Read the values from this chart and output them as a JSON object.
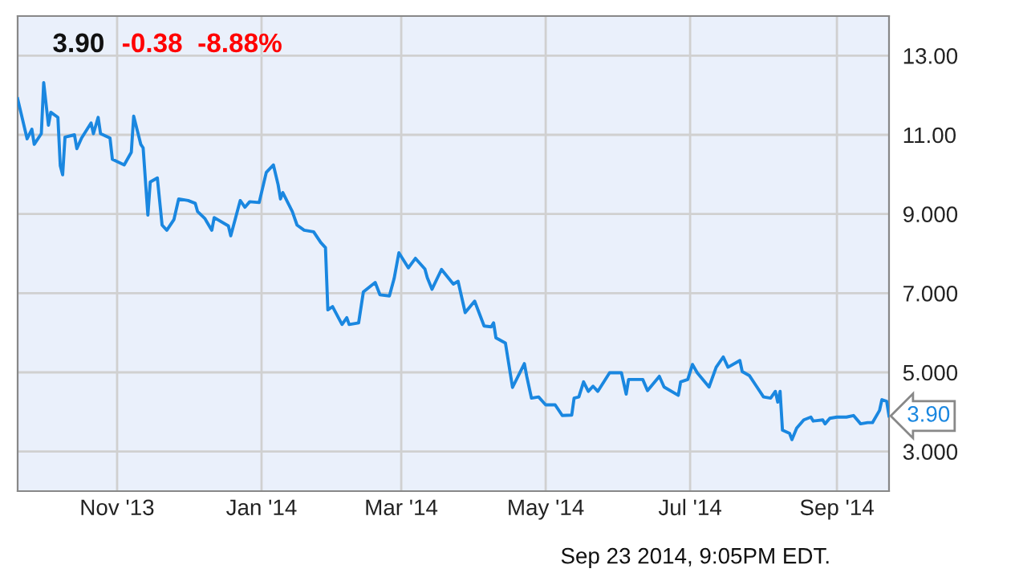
{
  "chart_data": {
    "type": "line",
    "title": "3.90",
    "subtitle": "-0.38  -8.88%",
    "annotations": [
      {
        "text": "3.90",
        "x": "2014-09-23",
        "y": 3.9
      },
      "Sep 23 2014, 9:05PM EDT."
    ],
    "xlim": [
      "2013-09-20",
      "2014-09-23"
    ],
    "xticks": [
      {
        "value": "2013-11-01",
        "label": "Nov '13"
      },
      {
        "value": "2014-01-01",
        "label": "Jan '14"
      },
      {
        "value": "2014-03-01",
        "label": "Mar '14"
      },
      {
        "value": "2014-05-01",
        "label": "May '14"
      },
      {
        "value": "2014-07-01",
        "label": "Jul '14"
      },
      {
        "value": "2014-09-01",
        "label": "Sep '14"
      }
    ],
    "ylim": [
      2,
      14
    ],
    "yticks": [
      {
        "value": 3,
        "label": "3.000"
      },
      {
        "value": 5,
        "label": "5.000"
      },
      {
        "value": 7,
        "label": "7.000"
      },
      {
        "value": 9,
        "label": "9.000"
      },
      {
        "value": 11,
        "label": "11.00"
      },
      {
        "value": 13,
        "label": "13.00"
      }
    ],
    "grid": true,
    "legend": false,
    "marker": "none",
    "line_style": "solid",
    "series": [
      {
        "color": "#1a87e0",
        "x": [
          "2013-09-20",
          "2013-09-24",
          "2013-09-26",
          "2013-09-27",
          "2013-09-30",
          "2013-10-01",
          "2013-10-03",
          "2013-10-04",
          "2013-10-07",
          "2013-10-08",
          "2013-10-09",
          "2013-10-10",
          "2013-10-14",
          "2013-10-15",
          "2013-10-17",
          "2013-10-21",
          "2013-10-22",
          "2013-10-24",
          "2013-10-25",
          "2013-10-29",
          "2013-10-30",
          "2013-11-04",
          "2013-11-07",
          "2013-11-08",
          "2013-11-11",
          "2013-11-12",
          "2013-11-14",
          "2013-11-15",
          "2013-11-18",
          "2013-11-20",
          "2013-11-22",
          "2013-11-25",
          "2013-11-27",
          "2013-12-01",
          "2013-12-04",
          "2013-12-05",
          "2013-12-08",
          "2013-12-11",
          "2013-12-12",
          "2013-12-18",
          "2013-12-19",
          "2013-12-23",
          "2013-12-25",
          "2013-12-27",
          "2013-12-31",
          "2014-01-03",
          "2014-01-06",
          "2014-01-08",
          "2014-01-09",
          "2014-01-10",
          "2014-01-14",
          "2014-01-16",
          "2014-01-19",
          "2014-01-23",
          "2014-01-26",
          "2014-01-28",
          "2014-01-29",
          "2014-01-31",
          "2014-02-04",
          "2014-02-06",
          "2014-02-07",
          "2014-02-11",
          "2014-02-13",
          "2014-02-18",
          "2014-02-20",
          "2014-02-24",
          "2014-02-26",
          "2014-02-28",
          "2014-03-04",
          "2014-03-07",
          "2014-03-11",
          "2014-03-12",
          "2014-03-14",
          "2014-03-18",
          "2014-03-23",
          "2014-03-25",
          "2014-03-28",
          "2014-04-01",
          "2014-04-05",
          "2014-04-08",
          "2014-04-09",
          "2014-04-10",
          "2014-04-14",
          "2014-04-17",
          "2014-04-22",
          "2014-04-23",
          "2014-04-25",
          "2014-04-28",
          "2014-05-01",
          "2014-05-05",
          "2014-05-08",
          "2014-05-12",
          "2014-05-13",
          "2014-05-15",
          "2014-05-17",
          "2014-05-19",
          "2014-05-21",
          "2014-05-23",
          "2014-05-28",
          "2014-06-02",
          "2014-06-04",
          "2014-06-05",
          "2014-06-11",
          "2014-06-13",
          "2014-06-18",
          "2014-06-20",
          "2014-06-26",
          "2014-06-27",
          "2014-06-30",
          "2014-07-02",
          "2014-07-04",
          "2014-07-09",
          "2014-07-12",
          "2014-07-15",
          "2014-07-17",
          "2014-07-22",
          "2014-07-23",
          "2014-07-26",
          "2014-07-29",
          "2014-08-01",
          "2014-08-04",
          "2014-08-06",
          "2014-08-07",
          "2014-08-08",
          "2014-08-09",
          "2014-08-12",
          "2014-08-13",
          "2014-08-15",
          "2014-08-18",
          "2014-08-21",
          "2014-08-22",
          "2014-08-26",
          "2014-08-27",
          "2014-08-29",
          "2014-09-01",
          "2014-09-05",
          "2014-09-08",
          "2014-09-11",
          "2014-09-14",
          "2014-09-16",
          "2014-09-19",
          "2014-09-20",
          "2014-09-22",
          "2014-09-23"
        ],
        "values": [
          11.91,
          10.9,
          11.14,
          10.76,
          11.03,
          12.32,
          11.24,
          11.57,
          11.44,
          10.22,
          9.99,
          10.94,
          11.0,
          10.65,
          10.92,
          11.3,
          11.03,
          11.44,
          11.03,
          10.92,
          10.38,
          10.24,
          10.56,
          11.47,
          10.76,
          10.67,
          8.97,
          9.81,
          9.91,
          8.72,
          8.59,
          8.86,
          9.38,
          9.34,
          9.27,
          9.06,
          8.89,
          8.59,
          8.91,
          8.7,
          8.45,
          9.34,
          9.17,
          9.31,
          9.29,
          10.05,
          10.24,
          9.74,
          9.38,
          9.54,
          9.06,
          8.72,
          8.59,
          8.55,
          8.28,
          8.15,
          6.58,
          6.66,
          6.21,
          6.38,
          6.21,
          6.25,
          7.03,
          7.27,
          6.96,
          6.93,
          7.37,
          8.02,
          7.64,
          7.88,
          7.61,
          7.39,
          7.1,
          7.6,
          7.23,
          7.3,
          6.51,
          6.8,
          6.17,
          6.15,
          6.25,
          5.87,
          5.74,
          4.62,
          5.22,
          4.9,
          4.35,
          4.38,
          4.18,
          4.18,
          3.91,
          3.92,
          4.35,
          4.38,
          4.76,
          4.52,
          4.65,
          4.52,
          4.99,
          4.99,
          4.45,
          4.82,
          4.82,
          4.54,
          4.9,
          4.63,
          4.42,
          4.76,
          4.82,
          5.2,
          4.99,
          4.63,
          5.13,
          5.39,
          5.13,
          5.3,
          5.02,
          4.92,
          4.65,
          4.38,
          4.35,
          4.52,
          4.25,
          4.52,
          3.54,
          3.46,
          3.3,
          3.59,
          3.8,
          3.87,
          3.77,
          3.8,
          3.7,
          3.84,
          3.87,
          3.87,
          3.91,
          3.7,
          3.73,
          3.73,
          4.04,
          4.31,
          4.27,
          3.9
        ]
      }
    ]
  }
}
